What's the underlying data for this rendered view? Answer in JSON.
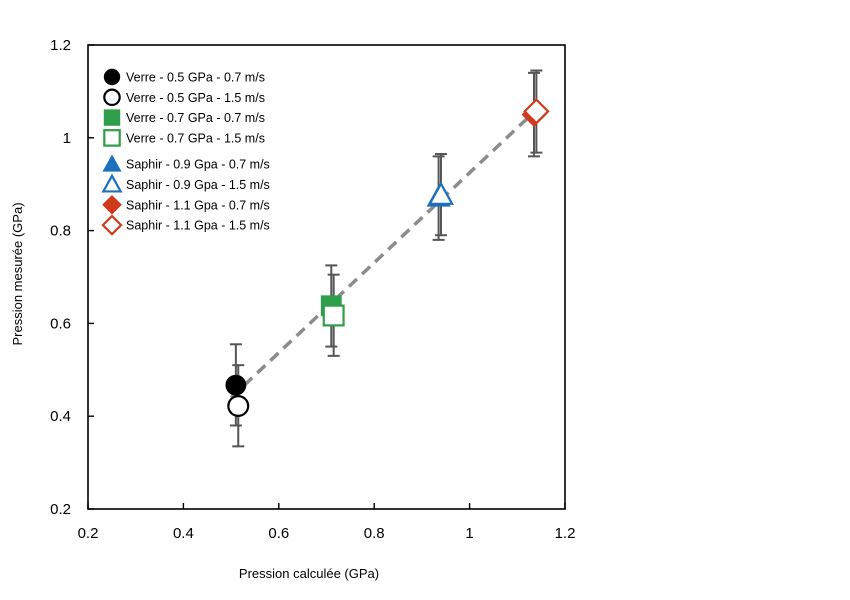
{
  "chart_data": {
    "type": "scatter",
    "title": "",
    "xlabel": "Pression calculée (GPa)",
    "ylabel": "Pression mesurée (GPa)",
    "xlim": [
      0.2,
      1.2
    ],
    "ylim": [
      0.2,
      1.2
    ],
    "xticks": [
      "0.2",
      "0.4",
      "0.6",
      "0.8",
      "1",
      "1.2"
    ],
    "yticks": [
      "0.2",
      "0.4",
      "0.6",
      "0.8",
      "1",
      "1.2"
    ],
    "grid": false,
    "legend_position": "top-left",
    "trend_line": {
      "x": [
        0.5,
        1.15
      ],
      "y": [
        0.44,
        1.07
      ],
      "style": "dashed",
      "color": "#8c8c8c"
    },
    "series": [
      {
        "name": "Verre - 0.5 GPa - 0.7 m/s",
        "marker": "circle",
        "filled": true,
        "color": "#000000",
        "x": [
          0.51
        ],
        "y": [
          0.467
        ],
        "err_low": [
          0.38
        ],
        "err_high": [
          0.555
        ]
      },
      {
        "name": "Verre - 0.5 GPa - 1.5 m/s",
        "marker": "circle",
        "filled": false,
        "color": "#000000",
        "x": [
          0.515
        ],
        "y": [
          0.422
        ],
        "err_low": [
          0.335
        ],
        "err_high": [
          0.51
        ]
      },
      {
        "name": "Verre - 0.7 GPa - 0.7 m/s",
        "marker": "square",
        "filled": true,
        "color": "#2e9e4a",
        "x": [
          0.71
        ],
        "y": [
          0.638
        ],
        "err_low": [
          0.55
        ],
        "err_high": [
          0.725
        ]
      },
      {
        "name": "Verre - 0.7 GPa - 1.5 m/s",
        "marker": "square",
        "filled": false,
        "color": "#2e9e4a",
        "x": [
          0.715
        ],
        "y": [
          0.617
        ],
        "err_low": [
          0.53
        ],
        "err_high": [
          0.705
        ]
      },
      {
        "name": "Saphir - 0.9 Gpa - 0.7 m/s",
        "marker": "triangle",
        "filled": true,
        "color": "#1f6fbf",
        "x": [
          0.935
        ],
        "y": [
          0.872
        ],
        "err_low": [
          0.78
        ],
        "err_high": [
          0.96
        ]
      },
      {
        "name": "Saphir - 0.9 Gpa - 1.5 m/s",
        "marker": "triangle",
        "filled": false,
        "color": "#1f6fbf",
        "x": [
          0.94
        ],
        "y": [
          0.877
        ],
        "err_low": [
          0.79
        ],
        "err_high": [
          0.965
        ]
      },
      {
        "name": "Saphir - 1.1 Gpa - 0.7 m/s",
        "marker": "diamond",
        "filled": true,
        "color": "#d0391b",
        "x": [
          1.135
        ],
        "y": [
          1.05
        ],
        "err_low": [
          0.96
        ],
        "err_high": [
          1.14
        ]
      },
      {
        "name": "Saphir - 1.1 Gpa - 1.5 m/s",
        "marker": "diamond",
        "filled": false,
        "color": "#d0391b",
        "x": [
          1.14
        ],
        "y": [
          1.057
        ],
        "err_low": [
          0.968
        ],
        "err_high": [
          1.145
        ]
      }
    ]
  }
}
